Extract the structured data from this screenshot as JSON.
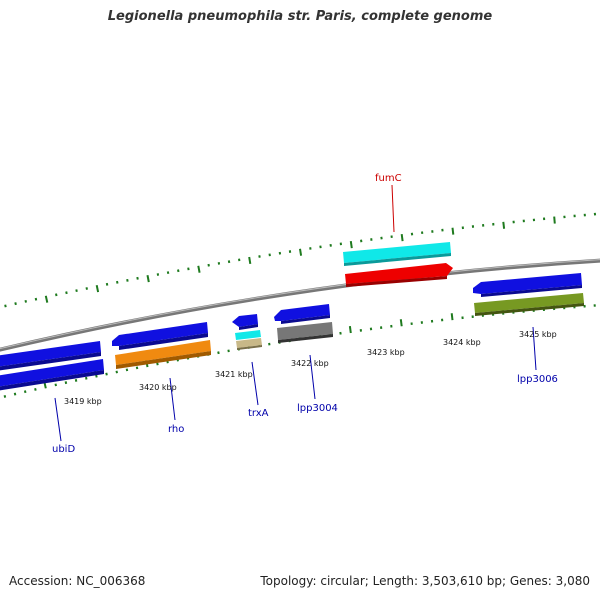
{
  "title": "Legionella pneumophila str. Paris, complete genome",
  "footer": {
    "accession": "Accession: NC_006368",
    "topology": "Topology: circular; Length: 3,503,610 bp; Genes: 3,080"
  },
  "colors": {
    "backbone": "#888888",
    "tick": "#1e7a1e",
    "label_forward": "#cc0000",
    "label_reverse": "#0000aa",
    "gene_blue": "#1010e0",
    "gene_orange": "#f08a10",
    "gene_cyan": "#10e8e8",
    "gene_red": "#ee0000",
    "gene_gray": "#777777",
    "gene_tan": "#c8b888",
    "gene_olive": "#779922"
  },
  "scale_labels": [
    "3419 kbp",
    "3420 kbp",
    "3421 kbp",
    "3422 kbp",
    "3423 kbp",
    "3424 kbp",
    "3425 kbp"
  ],
  "gene_labels": {
    "fumC": "fumC",
    "ubiD": "ubiD",
    "rho": "rho",
    "trxA": "trxA",
    "lpp3004": "lpp3004",
    "lpp3006": "lpp3006"
  }
}
